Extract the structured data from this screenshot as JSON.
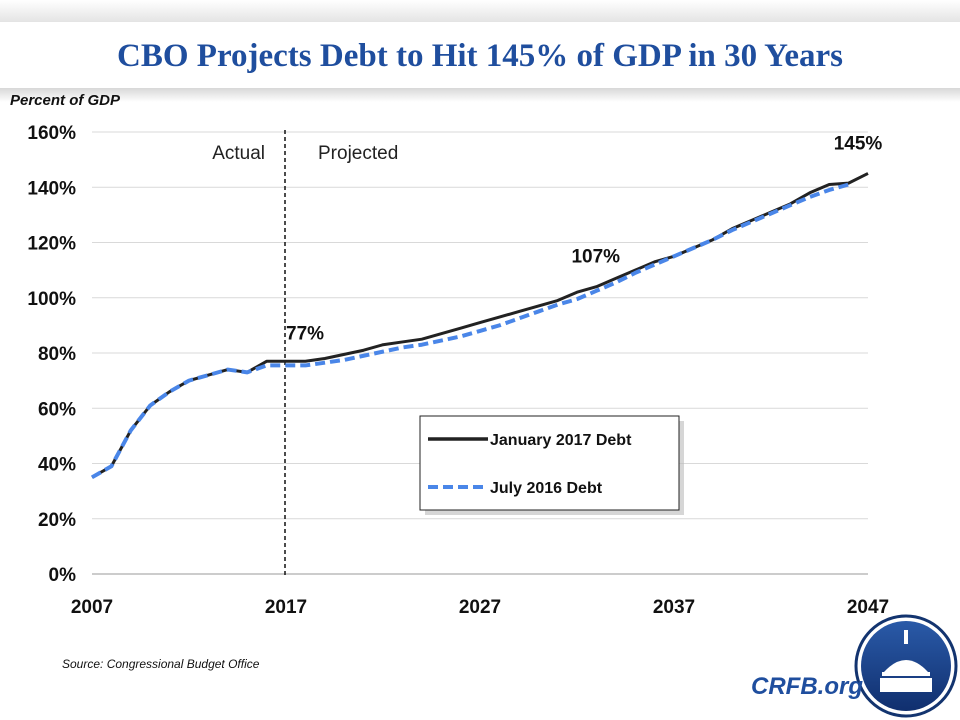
{
  "title": "CBO Projects Debt to Hit 145% of GDP in 30 Years",
  "source": "Source: Congressional Budget Office",
  "brand": "CRFB.org",
  "colors": {
    "title": "#1f4e9e",
    "january_2017": "#222222",
    "july_2016": "#4a86e8"
  },
  "chart_data": {
    "type": "line",
    "title": "CBO Projects Debt to Hit 145% of GDP in 30 Years",
    "ylabel": "Percent of GDP",
    "xlabel": "",
    "xlim": [
      2007,
      2047
    ],
    "ylim": [
      0,
      160
    ],
    "x_ticks": [
      "2007",
      "2017",
      "2027",
      "2037",
      "2047"
    ],
    "y_ticks": [
      "0%",
      "20%",
      "40%",
      "60%",
      "80%",
      "100%",
      "120%",
      "140%",
      "160%"
    ],
    "grid": "horizontal",
    "legend": "center-right",
    "divider": {
      "year": 2017,
      "left_label": "Actual",
      "right_label": "Projected"
    },
    "annotations": [
      {
        "text": "77%",
        "x": 2017,
        "y": 77
      },
      {
        "text": "107%",
        "x": 2034,
        "y": 107
      },
      {
        "text": "145%",
        "x": 2047,
        "y": 145
      }
    ],
    "series": [
      {
        "name": "January 2017 Debt",
        "style": "solid",
        "x": [
          2007,
          2008,
          2009,
          2010,
          2011,
          2012,
          2013,
          2014,
          2015,
          2016,
          2017,
          2018,
          2019,
          2020,
          2021,
          2022,
          2023,
          2024,
          2025,
          2026,
          2027,
          2028,
          2029,
          2030,
          2031,
          2032,
          2033,
          2034,
          2035,
          2036,
          2037,
          2038,
          2039,
          2040,
          2041,
          2042,
          2043,
          2044,
          2045,
          2046,
          2047
        ],
        "values": [
          35,
          39,
          52,
          61,
          66,
          70,
          72,
          74,
          73,
          77,
          77,
          77,
          78,
          79.5,
          81,
          83,
          84,
          85,
          87,
          89,
          91,
          93,
          95,
          97,
          99,
          102,
          104,
          107,
          110,
          113,
          115,
          118,
          121,
          125,
          128,
          131,
          134,
          138,
          141,
          141.5,
          145
        ]
      },
      {
        "name": "July 2016 Debt",
        "style": "dashed",
        "x": [
          2007,
          2008,
          2009,
          2010,
          2011,
          2012,
          2013,
          2014,
          2015,
          2016,
          2017,
          2018,
          2019,
          2020,
          2021,
          2022,
          2023,
          2024,
          2025,
          2026,
          2027,
          2028,
          2029,
          2030,
          2031,
          2032,
          2033,
          2034,
          2035,
          2036,
          2037,
          2038,
          2039,
          2040,
          2041,
          2042,
          2043,
          2044,
          2045,
          2046
        ],
        "values": [
          35,
          39,
          52,
          61,
          66,
          70,
          72,
          74,
          73,
          75.5,
          75.5,
          75.5,
          76.5,
          77.5,
          79,
          80.5,
          82,
          83,
          84.5,
          86,
          88,
          90,
          92.5,
          95,
          97.5,
          99.5,
          102.5,
          105.5,
          109,
          112,
          115,
          118,
          121,
          124.5,
          127.5,
          130.5,
          133.5,
          136.5,
          139,
          141
        ]
      }
    ]
  }
}
